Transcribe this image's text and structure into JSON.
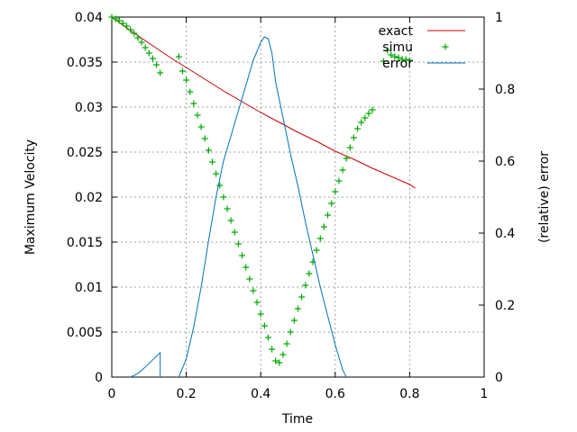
{
  "chart_data": {
    "type": "line",
    "xlabel": "Time",
    "ylabel": "Maximum Velocity",
    "y2label": "(relative) error",
    "xlim": [
      0,
      1
    ],
    "ylim": [
      0,
      0.04
    ],
    "y2lim": [
      0,
      1
    ],
    "grid": true,
    "legend_position": "top-right",
    "x_ticks": [
      "0",
      "0.2",
      "0.4",
      "0.6",
      "0.8",
      "1"
    ],
    "y_ticks": [
      "0",
      "0.005",
      "0.01",
      "0.015",
      "0.02",
      "0.025",
      "0.03",
      "0.035",
      "0.04"
    ],
    "y2_ticks": [
      "0",
      "0.2",
      "0.4",
      "0.6",
      "0.8",
      "1"
    ],
    "series": [
      {
        "name": "exact",
        "axis": "y",
        "style": "line",
        "color": "#cc0000",
        "x": [
          0,
          0.05,
          0.1,
          0.15,
          0.2,
          0.25,
          0.3,
          0.35,
          0.4,
          0.45,
          0.5,
          0.55,
          0.6,
          0.65,
          0.7,
          0.75,
          0.8,
          0.815
        ],
        "y": [
          0.04,
          0.0385,
          0.0371,
          0.0357,
          0.0344,
          0.0331,
          0.0318,
          0.0306,
          0.0294,
          0.0283,
          0.0272,
          0.0262,
          0.0251,
          0.0242,
          0.0232,
          0.0223,
          0.0214,
          0.021
        ]
      },
      {
        "name": "simu",
        "axis": "y",
        "style": "points",
        "color": "#00aa00",
        "x": [
          0,
          0.01,
          0.02,
          0.03,
          0.04,
          0.05,
          0.06,
          0.07,
          0.08,
          0.09,
          0.1,
          0.11,
          0.12,
          0.13,
          0.18,
          0.19,
          0.2,
          0.21,
          0.22,
          0.23,
          0.24,
          0.25,
          0.26,
          0.27,
          0.28,
          0.29,
          0.3,
          0.31,
          0.32,
          0.33,
          0.34,
          0.35,
          0.36,
          0.37,
          0.38,
          0.39,
          0.4,
          0.41,
          0.42,
          0.43,
          0.44,
          0.45,
          0.46,
          0.47,
          0.48,
          0.49,
          0.5,
          0.51,
          0.52,
          0.53,
          0.54,
          0.55,
          0.56,
          0.57,
          0.58,
          0.59,
          0.6,
          0.61,
          0.62,
          0.63,
          0.64,
          0.65,
          0.66,
          0.67,
          0.68,
          0.69,
          0.7,
          0.73,
          0.74,
          0.75,
          0.76,
          0.77,
          0.78,
          0.79,
          0.8
        ],
        "y": [
          0.04,
          0.0398,
          0.0396,
          0.0393,
          0.039,
          0.0386,
          0.0382,
          0.0377,
          0.0372,
          0.0366,
          0.036,
          0.0354,
          0.0347,
          0.0338,
          0.0356,
          0.034,
          0.033,
          0.0317,
          0.0304,
          0.0291,
          0.0278,
          0.0265,
          0.0252,
          0.0239,
          0.0226,
          0.0213,
          0.02,
          0.0187,
          0.0174,
          0.0161,
          0.0148,
          0.0135,
          0.0122,
          0.0109,
          0.0096,
          0.0083,
          0.007,
          0.0057,
          0.0044,
          0.0031,
          0.0018,
          0.0016,
          0.0025,
          0.0037,
          0.005,
          0.0063,
          0.0076,
          0.0089,
          0.0102,
          0.0115,
          0.0128,
          0.0141,
          0.0154,
          0.0167,
          0.018,
          0.0193,
          0.0206,
          0.0218,
          0.023,
          0.0243,
          0.0255,
          0.0266,
          0.0276,
          0.0283,
          0.0288,
          0.0293,
          0.0297,
          0.0351,
          0.0363,
          0.0358,
          0.0356,
          0.0355,
          0.0353,
          0.0353,
          0.0352
        ]
      },
      {
        "name": "error",
        "axis": "y2",
        "style": "line",
        "color": "#0072bd",
        "segments": [
          {
            "x": [
              0.05,
              0.07,
              0.09,
              0.11,
              0.13,
              0.13
            ],
            "y": [
              0,
              0.01,
              0.028,
              0.048,
              0.068,
              0
            ]
          },
          {
            "x": [
              0.18,
              0.2,
              0.22,
              0.24,
              0.26,
              0.28,
              0.3,
              0.32,
              0.34,
              0.36,
              0.38,
              0.4,
              0.41,
              0.42,
              0.43,
              0.44,
              0.46,
              0.48,
              0.5,
              0.52,
              0.54,
              0.56,
              0.58,
              0.6,
              0.62,
              0.63
            ],
            "y": [
              0,
              0.05,
              0.14,
              0.25,
              0.38,
              0.5,
              0.6,
              0.67,
              0.74,
              0.81,
              0.88,
              0.93,
              0.945,
              0.94,
              0.9,
              0.82,
              0.72,
              0.62,
              0.53,
              0.43,
              0.34,
              0.25,
              0.17,
              0.09,
              0.02,
              0
            ]
          }
        ]
      }
    ]
  }
}
